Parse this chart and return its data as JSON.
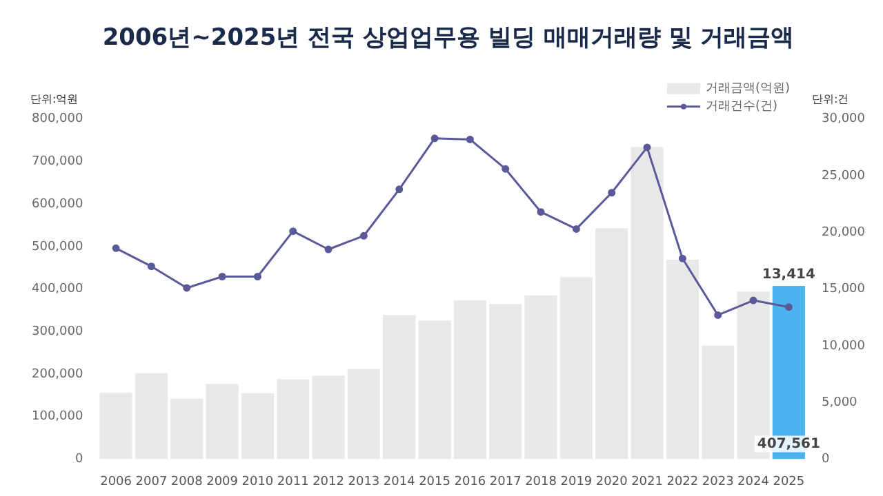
{
  "chart_data": {
    "type": "bar",
    "title": "2006년~2025년 전국 상업업무용 빌딩 매매거래량 및 거래금액",
    "ylabel": "단위:억원",
    "y2label": "단위:건",
    "categories": [
      "2006",
      "2007",
      "2008",
      "2009",
      "2010",
      "2011",
      "2012",
      "2013",
      "2014",
      "2015",
      "2016",
      "2017",
      "2018",
      "2019",
      "2020",
      "2021",
      "2022",
      "2023",
      "2024",
      "2025"
    ],
    "series": [
      {
        "name": "거래금액(억원)",
        "colors": [
          "#e8e8e8",
          "#e8e8e8",
          "#e8e8e8",
          "#e8e8e8",
          "#e8e8e8",
          "#e8e8e8",
          "#e8e8e8",
          "#e8e8e8",
          "#e8e8e8",
          "#e8e8e8",
          "#e8e8e8",
          "#e8e8e8",
          "#e8e8e8",
          "#e8e8e8",
          "#e8e8e8",
          "#e8e8e8",
          "#e8e8e8",
          "#e8e8e8",
          "#e8e8e8",
          "#4db3ee"
        ],
        "color": "#e8e8e8",
        "values": [
          156000,
          202000,
          142000,
          177000,
          155000,
          188000,
          196000,
          212000,
          339000,
          326000,
          373000,
          365000,
          385000,
          428000,
          543000,
          734000,
          469000,
          267000,
          394000,
          407561
        ],
        "value_labels": [
          null,
          null,
          null,
          null,
          null,
          null,
          null,
          null,
          null,
          null,
          null,
          null,
          null,
          null,
          null,
          null,
          null,
          null,
          null,
          "407,561"
        ]
      },
      {
        "name": "거래건수(건)",
        "type": "line",
        "axis": "y2",
        "color": "#5a5a9a",
        "values": [
          18600,
          17000,
          15100,
          16100,
          16100,
          20100,
          18500,
          19700,
          23800,
          28300,
          28200,
          25600,
          21800,
          20300,
          23500,
          27500,
          17700,
          12700,
          14000,
          13414
        ],
        "value_labels": [
          null,
          null,
          null,
          null,
          null,
          null,
          null,
          null,
          null,
          null,
          null,
          null,
          null,
          null,
          null,
          null,
          null,
          null,
          null,
          "13,414"
        ]
      }
    ],
    "ylim": [
      0,
      800000
    ],
    "yticks": [
      0,
      {
        "value": 100000,
        "label": "100,000"
      },
      {
        "value": 200000,
        "label": "200,000"
      },
      {
        "value": 300000,
        "label": "300,000"
      },
      {
        "value": 400000,
        "label": "400,000"
      },
      {
        "value": 500000,
        "label": "500,000"
      },
      {
        "value": 600000,
        "label": "600,000"
      },
      {
        "value": 700000,
        "label": "700,000"
      },
      {
        "value": 800000,
        "label": "800,000"
      }
    ],
    "y2lim": [
      0,
      30000
    ],
    "y2ticks": [
      0,
      {
        "value": 5000,
        "label": "5,000"
      },
      {
        "value": 10000,
        "label": "10,000"
      },
      {
        "value": 15000,
        "label": "15,000"
      },
      {
        "value": 20000,
        "label": "20,000"
      },
      {
        "value": 25000,
        "label": "25,000"
      },
      {
        "value": 30000,
        "label": "30,000"
      }
    ],
    "grid": false,
    "legend": "top right",
    "marker": "circle",
    "line_style": "solid"
  }
}
